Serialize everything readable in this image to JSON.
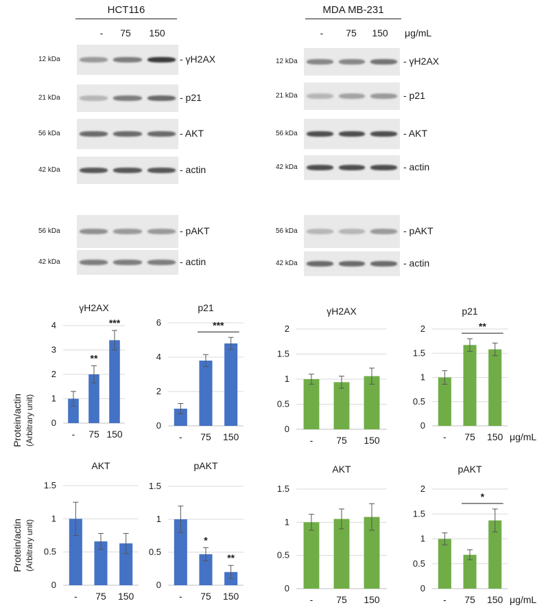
{
  "blots": [
    {
      "cell_line": "HCT116",
      "lanes": [
        "-",
        "75",
        "150"
      ],
      "unit": "",
      "rows": [
        {
          "kda": "12 kDa",
          "label": "- γH2AX"
        },
        {
          "kda": "21 kDa",
          "label": "- p21"
        },
        {
          "kda": "56 kDa",
          "label": "- AKT"
        },
        {
          "kda": "42 kDa",
          "label": "- actin"
        },
        {
          "kda": "56 kDa",
          "label": "- pAKT"
        },
        {
          "kda": "42 kDa",
          "label": "- actin"
        }
      ]
    },
    {
      "cell_line": "MDA MB-231",
      "lanes": [
        "-",
        "75",
        "150"
      ],
      "unit": "μg/mL",
      "rows": [
        {
          "kda": "12 kDa",
          "label": "- γH2AX"
        },
        {
          "kda": "21 kDa",
          "label": "- p21"
        },
        {
          "kda": "56 kDa",
          "label": "- AKT"
        },
        {
          "kda": "42 kDa",
          "label": "- actin"
        },
        {
          "kda": "56 kDa",
          "label": "- pAKT"
        },
        {
          "kda": "42 kDa",
          "label": "- actin"
        }
      ]
    }
  ],
  "ylabel": {
    "line1": "Protein/actin",
    "line2": "(Arbitrary unit)"
  },
  "colors": {
    "hct116": "#4472c4",
    "mda": "#70ad47",
    "grid": "#d9d9d9",
    "axis": "#bfbfbf"
  },
  "chart_data": [
    {
      "type": "bar",
      "title": "γH2AX",
      "cell_line": "HCT116",
      "categories": [
        "-",
        "75",
        "150"
      ],
      "values": [
        1.0,
        2.0,
        3.4
      ],
      "errors": [
        0.3,
        0.35,
        0.4
      ],
      "ylim": [
        0,
        4
      ],
      "yticks": [
        "0",
        "1",
        "2",
        "3",
        "4"
      ],
      "significance": [
        {
          "cat": 1,
          "text": "**"
        },
        {
          "cat": 2,
          "text": "***"
        }
      ],
      "bracket": null,
      "unit": ""
    },
    {
      "type": "bar",
      "title": "p21",
      "cell_line": "HCT116",
      "categories": [
        "-",
        "75",
        "150"
      ],
      "values": [
        1.0,
        3.8,
        4.8
      ],
      "errors": [
        0.3,
        0.35,
        0.35
      ],
      "ylim": [
        0,
        6
      ],
      "yticks": [
        "0",
        "2",
        "4",
        "6"
      ],
      "significance": [],
      "bracket": {
        "from": 1,
        "to": 2,
        "text": "***"
      },
      "unit": ""
    },
    {
      "type": "bar",
      "title": "γH2AX",
      "cell_line": "MDA MB-231",
      "categories": [
        "-",
        "75",
        "150"
      ],
      "values": [
        1.0,
        0.94,
        1.06
      ],
      "errors": [
        0.1,
        0.12,
        0.16
      ],
      "ylim": [
        0,
        2
      ],
      "yticks": [
        "0",
        "0.5",
        "1",
        "1.5",
        "2"
      ],
      "significance": [],
      "bracket": null,
      "unit": ""
    },
    {
      "type": "bar",
      "title": "p21",
      "cell_line": "MDA MB-231",
      "categories": [
        "-",
        "75",
        "150"
      ],
      "values": [
        1.0,
        1.67,
        1.58
      ],
      "errors": [
        0.14,
        0.13,
        0.13
      ],
      "ylim": [
        0,
        2
      ],
      "yticks": [
        "0",
        "0.5",
        "1",
        "1.5",
        "2"
      ],
      "significance": [],
      "bracket": {
        "from": 1,
        "to": 2,
        "text": "**"
      },
      "unit": "μg/mL"
    },
    {
      "type": "bar",
      "title": "AKT",
      "cell_line": "HCT116",
      "categories": [
        "-",
        "75",
        "150"
      ],
      "values": [
        1.0,
        0.66,
        0.63
      ],
      "errors": [
        0.25,
        0.12,
        0.15
      ],
      "ylim": [
        0,
        1.5
      ],
      "yticks": [
        "0",
        "0.5",
        "1",
        "1.5"
      ],
      "significance": [],
      "bracket": null,
      "unit": ""
    },
    {
      "type": "bar",
      "title": "pAKT",
      "cell_line": "HCT116",
      "categories": [
        "-",
        "75",
        "150"
      ],
      "values": [
        1.0,
        0.47,
        0.2
      ],
      "errors": [
        0.2,
        0.1,
        0.1
      ],
      "ylim": [
        0,
        1.5
      ],
      "yticks": [
        "0",
        "0.5",
        "1",
        "1.5"
      ],
      "significance": [
        {
          "cat": 1,
          "text": "*"
        },
        {
          "cat": 2,
          "text": "**"
        }
      ],
      "bracket": null,
      "unit": ""
    },
    {
      "type": "bar",
      "title": "AKT",
      "cell_line": "MDA MB-231",
      "categories": [
        "-",
        "75",
        "150"
      ],
      "values": [
        1.0,
        1.05,
        1.08
      ],
      "errors": [
        0.12,
        0.15,
        0.2
      ],
      "ylim": [
        0,
        1.5
      ],
      "yticks": [
        "0",
        "0.5",
        "1",
        "1.5"
      ],
      "significance": [],
      "bracket": null,
      "unit": ""
    },
    {
      "type": "bar",
      "title": "pAKT",
      "cell_line": "MDA MB-231",
      "categories": [
        "-",
        "75",
        "150"
      ],
      "values": [
        1.0,
        0.68,
        1.37
      ],
      "errors": [
        0.12,
        0.1,
        0.23
      ],
      "ylim": [
        0,
        2
      ],
      "yticks": [
        "0",
        "0.5",
        "1",
        "1.5",
        "2"
      ],
      "significance": [],
      "bracket": {
        "from": 1,
        "to": 2,
        "text": "*"
      },
      "unit": "μg/mL"
    }
  ]
}
